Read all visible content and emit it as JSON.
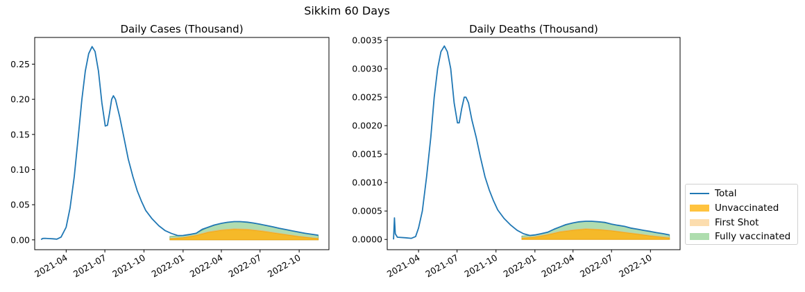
{
  "figure": {
    "title": "Sikkim 60 Days"
  },
  "legend": {
    "placement": "outside right, lower",
    "entries": [
      {
        "label": "Total",
        "color": "#1f77b4",
        "kind": "line"
      },
      {
        "label": "Unvaccinated",
        "color": "#ffb000",
        "kind": "patch"
      },
      {
        "label": "First Shot",
        "color": "#fbc77a",
        "kind": "patch"
      },
      {
        "label": "Fully vaccinated",
        "color": "#8ccf8c",
        "kind": "patch"
      }
    ]
  },
  "chart_data": [
    {
      "type": "area",
      "title": "Daily Cases (Thousand)",
      "xlabel": "",
      "ylabel": "",
      "grid": false,
      "x_ticks": [
        "2021-04",
        "2021-07",
        "2021-10",
        "2022-01",
        "2022-04",
        "2022-07",
        "2022-10"
      ],
      "y_ticks": [
        "0.00",
        "0.05",
        "0.10",
        "0.15",
        "0.20",
        "0.25"
      ],
      "ylim": [
        -0.014,
        0.288
      ],
      "xlim": [
        "2021-01-17",
        "2022-12-10"
      ],
      "series": [
        {
          "name": "Total",
          "kind": "line",
          "points": [
            [
              "2021-02-01",
              0.0005
            ],
            [
              "2021-02-05",
              0.002
            ],
            [
              "2021-02-10",
              0.0022
            ],
            [
              "2021-02-20",
              0.0018
            ],
            [
              "2021-03-01",
              0.0015
            ],
            [
              "2021-03-10",
              0.001
            ],
            [
              "2021-03-20",
              0.004
            ],
            [
              "2021-04-01",
              0.018
            ],
            [
              "2021-04-10",
              0.045
            ],
            [
              "2021-04-20",
              0.09
            ],
            [
              "2021-04-30",
              0.15
            ],
            [
              "2021-05-08",
              0.2
            ],
            [
              "2021-05-16",
              0.24
            ],
            [
              "2021-05-24",
              0.265
            ],
            [
              "2021-06-01",
              0.275
            ],
            [
              "2021-06-08",
              0.268
            ],
            [
              "2021-06-16",
              0.24
            ],
            [
              "2021-06-24",
              0.195
            ],
            [
              "2021-07-02",
              0.162
            ],
            [
              "2021-07-07",
              0.163
            ],
            [
              "2021-07-12",
              0.18
            ],
            [
              "2021-07-17",
              0.2
            ],
            [
              "2021-07-21",
              0.205
            ],
            [
              "2021-07-26",
              0.2
            ],
            [
              "2021-08-05",
              0.175
            ],
            [
              "2021-08-15",
              0.145
            ],
            [
              "2021-08-25",
              0.115
            ],
            [
              "2021-09-05",
              0.09
            ],
            [
              "2021-09-15",
              0.07
            ],
            [
              "2021-09-25",
              0.055
            ],
            [
              "2021-10-05",
              0.042
            ],
            [
              "2021-10-20",
              0.03
            ],
            [
              "2021-11-05",
              0.02
            ],
            [
              "2021-11-20",
              0.013
            ],
            [
              "2021-12-05",
              0.009
            ],
            [
              "2021-12-20",
              0.006
            ],
            [
              "2022-01-01",
              0.0062
            ],
            [
              "2022-01-15",
              0.0075
            ],
            [
              "2022-02-01",
              0.0095
            ],
            [
              "2022-02-15",
              0.015
            ],
            [
              "2022-03-01",
              0.018
            ],
            [
              "2022-03-15",
              0.021
            ],
            [
              "2022-04-01",
              0.0235
            ],
            [
              "2022-04-15",
              0.025
            ],
            [
              "2022-05-01",
              0.026
            ],
            [
              "2022-05-15",
              0.026
            ],
            [
              "2022-06-01",
              0.0252
            ],
            [
              "2022-06-15",
              0.024
            ],
            [
              "2022-07-01",
              0.0222
            ],
            [
              "2022-07-15",
              0.0205
            ],
            [
              "2022-08-01",
              0.0185
            ],
            [
              "2022-08-15",
              0.0165
            ],
            [
              "2022-09-01",
              0.0145
            ],
            [
              "2022-09-15",
              0.0127
            ],
            [
              "2022-10-01",
              0.011
            ],
            [
              "2022-10-15",
              0.0093
            ],
            [
              "2022-11-01",
              0.0078
            ],
            [
              "2022-11-15",
              0.0065
            ]
          ]
        },
        {
          "name": "Unvaccinated",
          "kind": "area",
          "points": [
            [
              "2021-12-01",
              0.0015
            ],
            [
              "2022-01-01",
              0.003
            ],
            [
              "2022-02-01",
              0.006
            ],
            [
              "2022-03-01",
              0.0105
            ],
            [
              "2022-04-01",
              0.0135
            ],
            [
              "2022-05-01",
              0.0148
            ],
            [
              "2022-06-01",
              0.0143
            ],
            [
              "2022-07-01",
              0.0125
            ],
            [
              "2022-08-01",
              0.0098
            ],
            [
              "2022-09-01",
              0.007
            ],
            [
              "2022-10-01",
              0.0045
            ],
            [
              "2022-11-01",
              0.0025
            ],
            [
              "2022-11-15",
              0.0018
            ]
          ]
        },
        {
          "name": "First Shot",
          "kind": "area",
          "points": [
            [
              "2021-12-01",
              0.002
            ],
            [
              "2022-01-01",
              0.0035
            ],
            [
              "2022-02-01",
              0.0068
            ],
            [
              "2022-03-01",
              0.0115
            ],
            [
              "2022-04-01",
              0.0145
            ],
            [
              "2022-05-01",
              0.0158
            ],
            [
              "2022-06-01",
              0.0153
            ],
            [
              "2022-07-01",
              0.0135
            ],
            [
              "2022-08-01",
              0.0107
            ],
            [
              "2022-09-01",
              0.0078
            ],
            [
              "2022-10-01",
              0.0052
            ],
            [
              "2022-11-01",
              0.003
            ],
            [
              "2022-11-15",
              0.0022
            ]
          ]
        },
        {
          "name": "Fully vaccinated",
          "kind": "area",
          "points": [
            [
              "2021-12-01",
              0.005
            ],
            [
              "2022-01-01",
              0.0062
            ],
            [
              "2022-02-01",
              0.0095
            ],
            [
              "2022-03-01",
              0.018
            ],
            [
              "2022-04-01",
              0.0235
            ],
            [
              "2022-05-01",
              0.026
            ],
            [
              "2022-06-01",
              0.0252
            ],
            [
              "2022-07-01",
              0.0222
            ],
            [
              "2022-08-01",
              0.0185
            ],
            [
              "2022-09-01",
              0.0145
            ],
            [
              "2022-10-01",
              0.011
            ],
            [
              "2022-11-01",
              0.0078
            ],
            [
              "2022-11-15",
              0.0065
            ]
          ]
        }
      ]
    },
    {
      "type": "area",
      "title": "Daily Deaths (Thousand)",
      "xlabel": "",
      "ylabel": "",
      "grid": false,
      "x_ticks": [
        "2021-04",
        "2021-07",
        "2021-10",
        "2022-01",
        "2022-04",
        "2022-07",
        "2022-10"
      ],
      "y_ticks": [
        "0.0000",
        "0.0005",
        "0.0010",
        "0.0015",
        "0.0020",
        "0.0025",
        "0.0030",
        "0.0035"
      ],
      "ylim": [
        -0.00018,
        0.00355
      ],
      "xlim": [
        "2021-01-17",
        "2022-12-10"
      ],
      "series": [
        {
          "name": "Total",
          "kind": "line",
          "points": [
            [
              "2021-02-01",
              0.0
            ],
            [
              "2021-02-03",
              0.00038
            ],
            [
              "2021-02-05",
              0.0001
            ],
            [
              "2021-02-10",
              4e-05
            ],
            [
              "2021-03-01",
              3e-05
            ],
            [
              "2021-03-15",
              2e-05
            ],
            [
              "2021-03-25",
              5e-05
            ],
            [
              "2021-04-01",
              0.0002
            ],
            [
              "2021-04-10",
              0.0005
            ],
            [
              "2021-04-20",
              0.0011
            ],
            [
              "2021-04-30",
              0.0018
            ],
            [
              "2021-05-08",
              0.0025
            ],
            [
              "2021-05-16",
              0.003
            ],
            [
              "2021-05-24",
              0.0033
            ],
            [
              "2021-06-01",
              0.0034
            ],
            [
              "2021-06-08",
              0.0033
            ],
            [
              "2021-06-16",
              0.003
            ],
            [
              "2021-06-24",
              0.0024
            ],
            [
              "2021-07-02",
              0.00205
            ],
            [
              "2021-07-06",
              0.00205
            ],
            [
              "2021-07-12",
              0.0023
            ],
            [
              "2021-07-18",
              0.0025
            ],
            [
              "2021-07-22",
              0.0025
            ],
            [
              "2021-07-28",
              0.0024
            ],
            [
              "2021-08-05",
              0.0021
            ],
            [
              "2021-08-15",
              0.0018
            ],
            [
              "2021-08-25",
              0.00145
            ],
            [
              "2021-09-05",
              0.0011
            ],
            [
              "2021-09-15",
              0.00087
            ],
            [
              "2021-09-25",
              0.00068
            ],
            [
              "2021-10-05",
              0.00052
            ],
            [
              "2021-10-20",
              0.00037
            ],
            [
              "2021-11-05",
              0.00025
            ],
            [
              "2021-11-20",
              0.00016
            ],
            [
              "2021-12-05",
              0.0001
            ],
            [
              "2021-12-20",
              7e-05
            ],
            [
              "2022-01-01",
              8e-05
            ],
            [
              "2022-01-15",
              0.0001
            ],
            [
              "2022-02-01",
              0.00013
            ],
            [
              "2022-02-15",
              0.00018
            ],
            [
              "2022-03-01",
              0.00022
            ],
            [
              "2022-03-15",
              0.00026
            ],
            [
              "2022-04-01",
              0.00029
            ],
            [
              "2022-04-15",
              0.00031
            ],
            [
              "2022-05-01",
              0.00032
            ],
            [
              "2022-05-15",
              0.00032
            ],
            [
              "2022-06-01",
              0.00031
            ],
            [
              "2022-06-15",
              0.0003
            ],
            [
              "2022-07-01",
              0.00027
            ],
            [
              "2022-07-15",
              0.00025
            ],
            [
              "2022-08-01",
              0.00023
            ],
            [
              "2022-08-15",
              0.0002
            ],
            [
              "2022-09-01",
              0.00018
            ],
            [
              "2022-09-15",
              0.00016
            ],
            [
              "2022-10-01",
              0.00014
            ],
            [
              "2022-10-15",
              0.00012
            ],
            [
              "2022-11-01",
              0.0001
            ],
            [
              "2022-11-15",
              8e-05
            ]
          ]
        },
        {
          "name": "Unvaccinated",
          "kind": "area",
          "points": [
            [
              "2021-12-01",
              2e-05
            ],
            [
              "2022-01-01",
              4e-05
            ],
            [
              "2022-02-01",
              8e-05
            ],
            [
              "2022-03-01",
              0.00013
            ],
            [
              "2022-04-01",
              0.00016
            ],
            [
              "2022-05-01",
              0.00018
            ],
            [
              "2022-06-01",
              0.00017
            ],
            [
              "2022-07-01",
              0.00015
            ],
            [
              "2022-08-01",
              0.00012
            ],
            [
              "2022-09-01",
              9e-05
            ],
            [
              "2022-10-01",
              6e-05
            ],
            [
              "2022-11-01",
              3.5e-05
            ],
            [
              "2022-11-15",
              2.5e-05
            ]
          ]
        },
        {
          "name": "First Shot",
          "kind": "area",
          "points": [
            [
              "2021-12-01",
              3e-05
            ],
            [
              "2022-01-01",
              5e-05
            ],
            [
              "2022-02-01",
              9e-05
            ],
            [
              "2022-03-01",
              0.00014
            ],
            [
              "2022-04-01",
              0.00017
            ],
            [
              "2022-05-01",
              0.00019
            ],
            [
              "2022-06-01",
              0.00018
            ],
            [
              "2022-07-01",
              0.00016
            ],
            [
              "2022-08-01",
              0.00013
            ],
            [
              "2022-09-01",
              0.0001
            ],
            [
              "2022-10-01",
              7e-05
            ],
            [
              "2022-11-01",
              4.5e-05
            ],
            [
              "2022-11-15",
              3.5e-05
            ]
          ]
        },
        {
          "name": "Fully vaccinated",
          "kind": "area",
          "points": [
            [
              "2021-12-01",
              6e-05
            ],
            [
              "2022-01-01",
              8e-05
            ],
            [
              "2022-02-01",
              0.00013
            ],
            [
              "2022-03-01",
              0.00022
            ],
            [
              "2022-04-01",
              0.00029
            ],
            [
              "2022-05-01",
              0.00032
            ],
            [
              "2022-06-01",
              0.00031
            ],
            [
              "2022-07-01",
              0.00027
            ],
            [
              "2022-08-01",
              0.00023
            ],
            [
              "2022-09-01",
              0.00018
            ],
            [
              "2022-10-01",
              0.00014
            ],
            [
              "2022-11-01",
              0.0001
            ],
            [
              "2022-11-15",
              8e-05
            ]
          ]
        }
      ]
    }
  ]
}
